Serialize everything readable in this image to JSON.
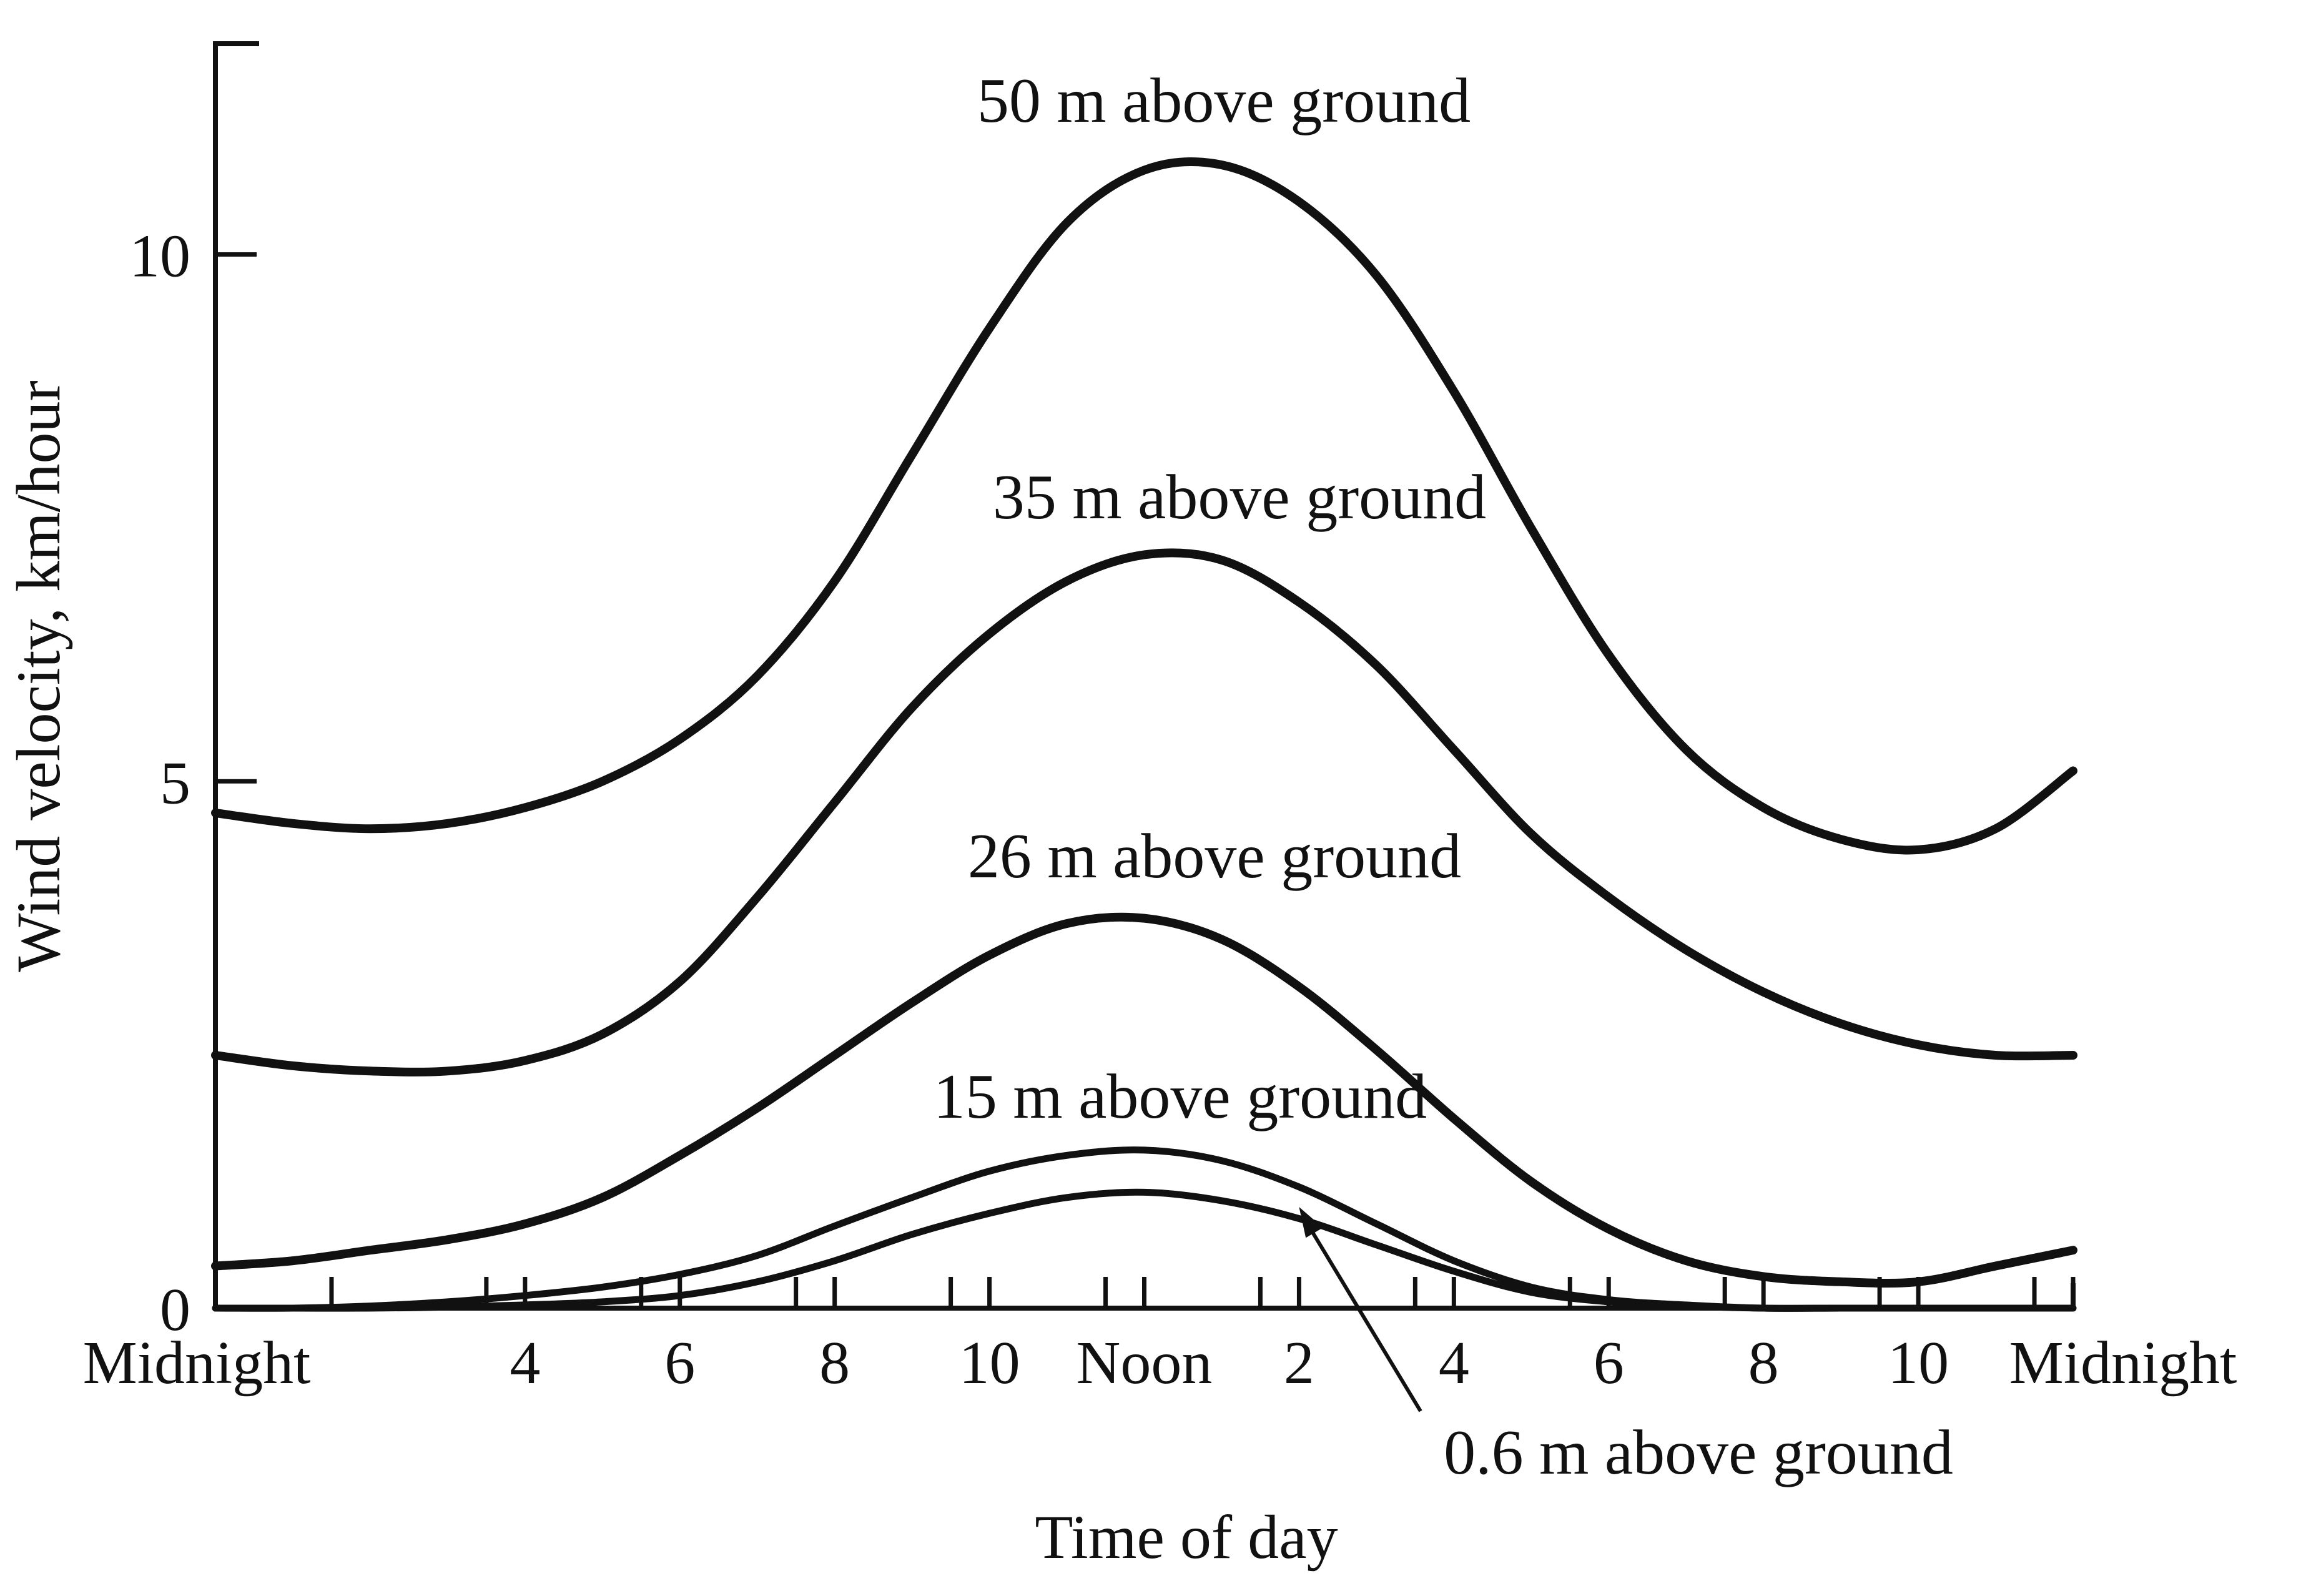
{
  "chart_data": {
    "type": "line",
    "title": "",
    "xlabel": "Time of day",
    "ylabel": "Wind velocity, km/hour",
    "xlim": [
      0,
      24
    ],
    "ylim": [
      0,
      12
    ],
    "grid": false,
    "x_ticks": [
      {
        "value": 0,
        "label": "Midnight"
      },
      {
        "value": 4,
        "label": "4"
      },
      {
        "value": 6,
        "label": "6"
      },
      {
        "value": 8,
        "label": "8"
      },
      {
        "value": 10,
        "label": "10"
      },
      {
        "value": 12,
        "label": "Noon"
      },
      {
        "value": 14,
        "label": "2"
      },
      {
        "value": 16,
        "label": "4"
      },
      {
        "value": 18,
        "label": "6"
      },
      {
        "value": 20,
        "label": "8"
      },
      {
        "value": 22,
        "label": "10"
      },
      {
        "value": 24,
        "label": "Midnight"
      }
    ],
    "minor_x_ticks": [
      1.5,
      3.5,
      5.5,
      7.5,
      9.5,
      11.5,
      13.5,
      15.5,
      17.5,
      19.5,
      21.5,
      23.5
    ],
    "y_ticks": [
      {
        "value": 0,
        "label": "0"
      },
      {
        "value": 5,
        "label": "5"
      },
      {
        "value": 10,
        "label": "10"
      }
    ],
    "series": [
      {
        "name": "50 m above ground",
        "x": [
          0,
          1,
          2,
          3,
          4,
          5,
          6,
          7,
          8,
          9,
          10,
          11,
          12,
          13,
          14,
          15,
          16,
          17,
          18,
          19,
          20,
          21,
          22,
          23,
          24
        ],
        "values": [
          4.7,
          4.6,
          4.55,
          4.6,
          4.75,
          5.0,
          5.4,
          6.0,
          6.9,
          8.1,
          9.3,
          10.3,
          10.8,
          10.85,
          10.5,
          9.8,
          8.7,
          7.4,
          6.2,
          5.3,
          4.75,
          4.45,
          4.35,
          4.55,
          5.1
        ]
      },
      {
        "name": "35 m above ground",
        "x": [
          0,
          1,
          2,
          3,
          4,
          5,
          6,
          7,
          8,
          9,
          10,
          11,
          12,
          13,
          14,
          15,
          16,
          17,
          18,
          19,
          20,
          21,
          22,
          23,
          24
        ],
        "values": [
          2.4,
          2.3,
          2.25,
          2.25,
          2.35,
          2.6,
          3.1,
          3.9,
          4.8,
          5.7,
          6.4,
          6.9,
          7.15,
          7.1,
          6.7,
          6.1,
          5.3,
          4.5,
          3.9,
          3.4,
          3.0,
          2.7,
          2.5,
          2.4,
          2.4
        ]
      },
      {
        "name": "26 m above ground",
        "x": [
          0,
          1,
          2,
          3,
          4,
          5,
          6,
          7,
          8,
          9,
          10,
          11,
          12,
          13,
          14,
          15,
          16,
          17,
          18,
          19,
          20,
          21,
          22,
          23,
          24
        ],
        "values": [
          0.4,
          0.45,
          0.55,
          0.65,
          0.8,
          1.05,
          1.45,
          1.9,
          2.4,
          2.9,
          3.35,
          3.65,
          3.7,
          3.5,
          3.05,
          2.45,
          1.8,
          1.2,
          0.75,
          0.45,
          0.3,
          0.25,
          0.25,
          0.4,
          0.55
        ]
      },
      {
        "name": "15 m above ground",
        "x": [
          0,
          1,
          2,
          3,
          4,
          5,
          6,
          7,
          8,
          9,
          10,
          11,
          12,
          13,
          14,
          15,
          16,
          17,
          18,
          19,
          20,
          21,
          22,
          23,
          24
        ],
        "values": [
          0.0,
          0.0,
          0.02,
          0.06,
          0.12,
          0.2,
          0.32,
          0.5,
          0.78,
          1.05,
          1.3,
          1.45,
          1.5,
          1.4,
          1.15,
          0.8,
          0.45,
          0.2,
          0.08,
          0.03,
          0.0,
          0.0,
          0.0,
          0.0,
          0.0
        ]
      },
      {
        "name": "0.6 m above ground",
        "x": [
          0,
          1,
          2,
          3,
          4,
          5,
          6,
          7,
          8,
          9,
          10,
          11,
          12,
          13,
          14,
          15,
          16,
          17,
          18,
          19,
          20,
          21,
          22,
          23,
          24
        ],
        "values": [
          0.0,
          0.0,
          0.0,
          0.01,
          0.03,
          0.06,
          0.12,
          0.25,
          0.45,
          0.7,
          0.9,
          1.05,
          1.1,
          1.02,
          0.85,
          0.6,
          0.35,
          0.15,
          0.06,
          0.02,
          0.0,
          0.0,
          0.0,
          0.0,
          0.0
        ]
      }
    ]
  }
}
